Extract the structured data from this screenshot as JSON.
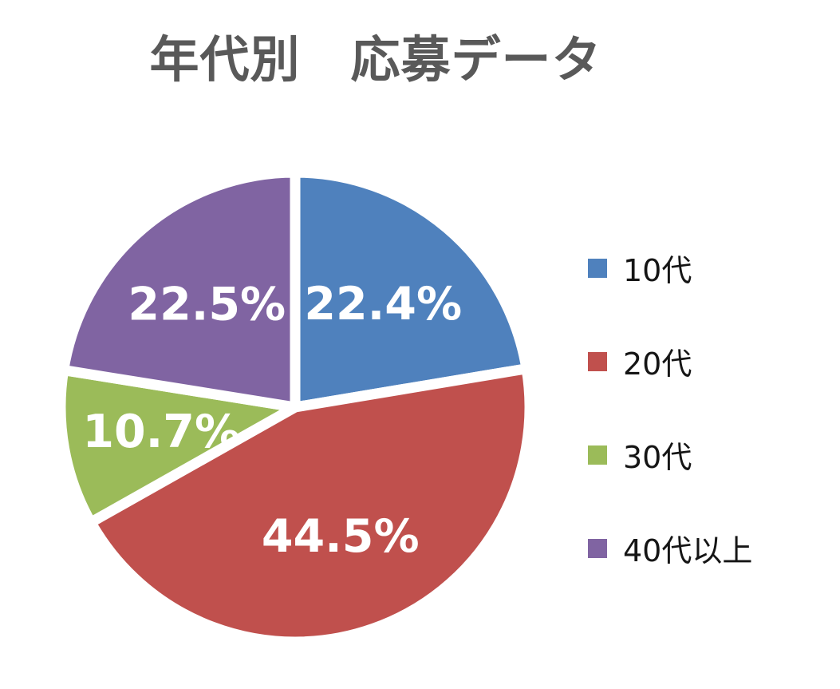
{
  "title": "年代別　応募データ",
  "title_color": "#595959",
  "chart_data": {
    "type": "pie",
    "title": "年代別　応募データ",
    "categories": [
      "10代",
      "20代",
      "30代",
      "40代以上"
    ],
    "values": [
      22.4,
      44.5,
      10.7,
      22.5
    ],
    "labels": [
      "22.4%",
      "44.5%",
      "10.7%",
      "22.5%"
    ],
    "colors": [
      "#4F81BD",
      "#C0504D",
      "#9BBB59",
      "#8064A2"
    ],
    "label_color": "#FFFFFF",
    "slice_border_color": "#FFFFFF",
    "start_angle_deg": 0,
    "direction": "clockwise",
    "legend_position": "right",
    "background": "#FFFFFF"
  },
  "legend": {
    "items": [
      {
        "label": "10代",
        "color": "#4F81BD"
      },
      {
        "label": "20代",
        "color": "#C0504D"
      },
      {
        "label": "30代",
        "color": "#9BBB59"
      },
      {
        "label": "40代以上",
        "color": "#8064A2"
      }
    ]
  }
}
